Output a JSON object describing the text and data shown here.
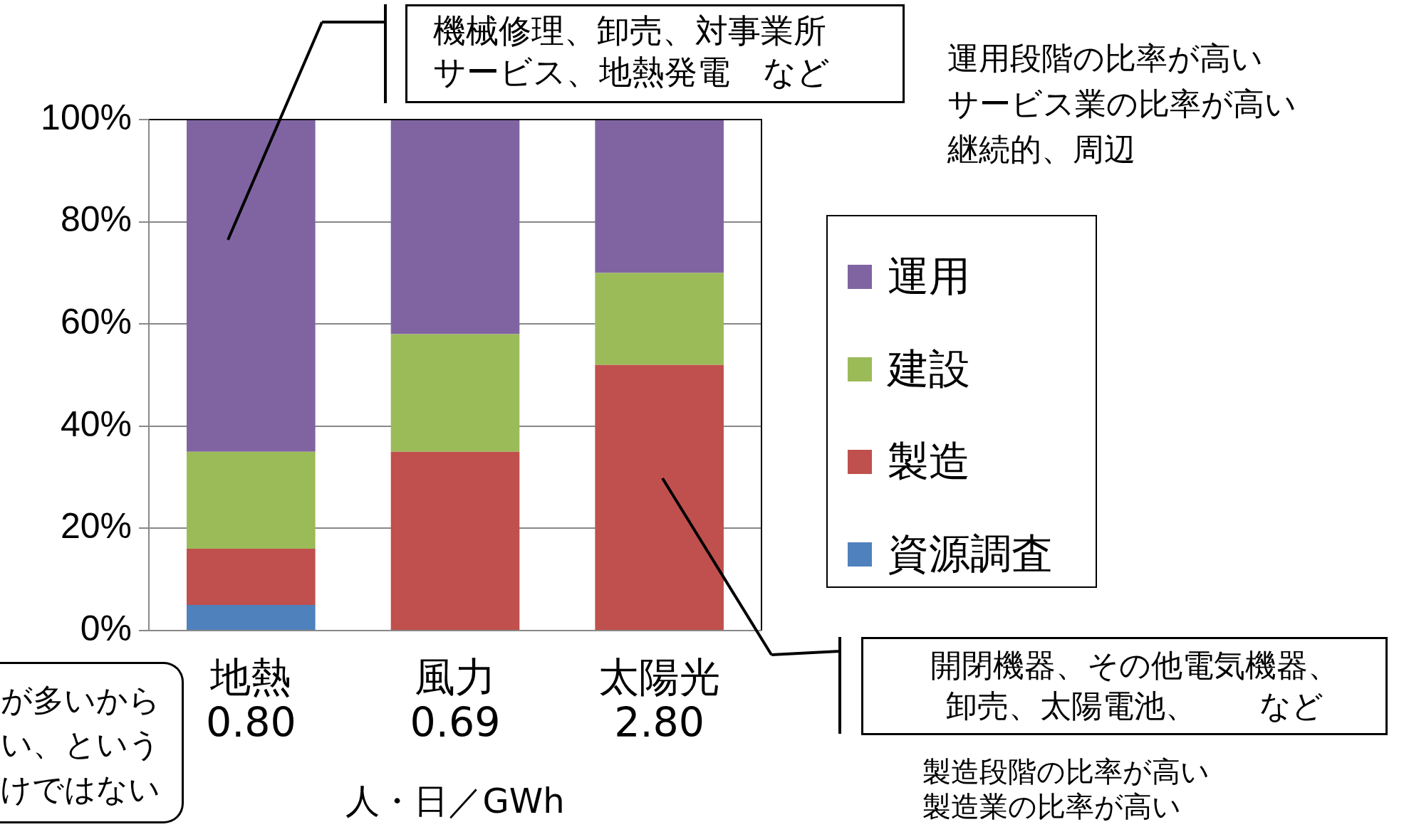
{
  "chart_data": {
    "type": "bar",
    "stacked": true,
    "categories": [
      "地熱\n0.80",
      "風力\n0.69",
      "太陽光\n2.80"
    ],
    "xlabel": "人・日／GWh",
    "series": [
      {
        "name": "資源調査",
        "color": "#4f81bd",
        "values": [
          5,
          0,
          0
        ]
      },
      {
        "name": "製造",
        "color": "#c0504d",
        "values": [
          11,
          35,
          52
        ]
      },
      {
        "name": "建設",
        "color": "#9bbb59",
        "values": [
          19,
          23,
          18
        ]
      },
      {
        "name": "運用",
        "color": "#8064a2",
        "values": [
          65,
          42,
          30
        ]
      }
    ],
    "ylim": [
      0,
      100
    ],
    "yticks": [
      {
        "value": 0,
        "label": "0%"
      },
      {
        "value": 20,
        "label": "20%"
      },
      {
        "value": 40,
        "label": "40%"
      },
      {
        "value": 60,
        "label": "60%"
      },
      {
        "value": 80,
        "label": "80%"
      },
      {
        "value": 100,
        "label": "100%"
      }
    ],
    "grid": "y",
    "legend": "right",
    "annotations": [
      "機械修理、卸売、対事業所サービス、地熱発電　など",
      "運用段階の比率が高いサービス業の比率が高い継続的、周辺",
      "開閉機器、その他電気機器、卸売、太陽電池、　　など",
      "製造段階の比率が高い製造業の比率が高い",
      "が多いからい、というけではない"
    ]
  }
}
